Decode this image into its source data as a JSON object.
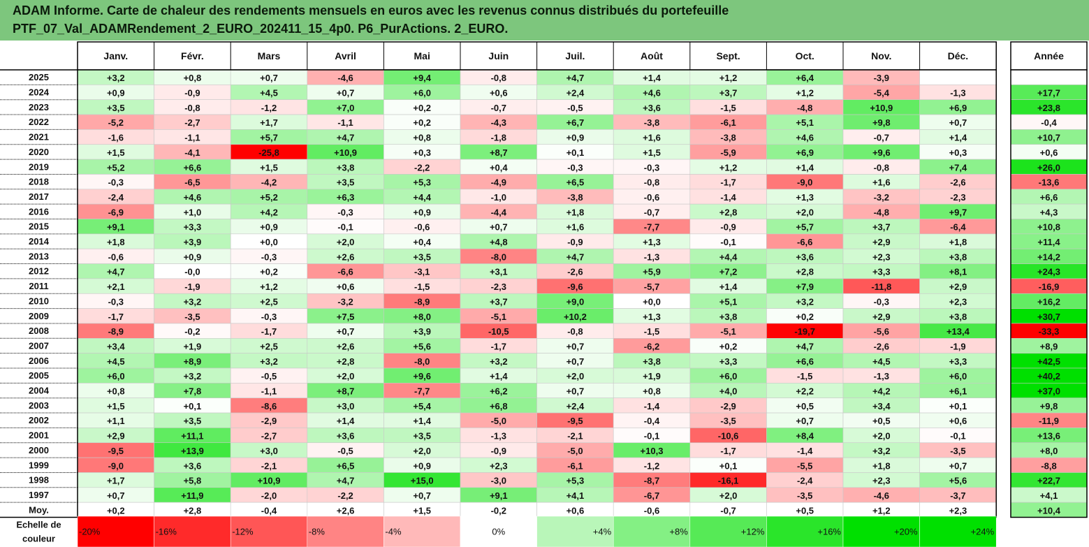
{
  "title_line1": "ADAM Informe. Carte de chaleur des rendements mensuels en euros avec les revenus connus distribués du portefeuille",
  "title_line2": "PTF_07_Val_ADAMRendement_2_EURO_202411_15_4p0. P6_PurActions. 2_EURO.",
  "colors": {
    "banner": "#7dc67d",
    "negative_max": "#ff0000",
    "neutral": "#ffffff",
    "positive_max": "#00e000"
  },
  "chart_data": {
    "type": "heatmap",
    "columns": [
      "Janv.",
      "Févr.",
      "Mars",
      "Avril",
      "Mai",
      "Juin",
      "Juil.",
      "Août",
      "Sept.",
      "Oct.",
      "Nov.",
      "Déc."
    ],
    "year_column": "Année",
    "rows": [
      {
        "label": "2025",
        "months": [
          "+3,2",
          "+0,8",
          "+0,7",
          "-4,6",
          "+9,4",
          "-0,8",
          "+4,7",
          "+1,4",
          "+1,2",
          "+6,4",
          "-3,9",
          ""
        ],
        "year": ""
      },
      {
        "label": "2024",
        "months": [
          "+0,9",
          "-0,9",
          "+4,5",
          "+0,7",
          "+6,0",
          "+0,6",
          "+2,4",
          "+4,6",
          "+3,7",
          "+1,2",
          "-5,4",
          "-1,3"
        ],
        "year": "+17,7"
      },
      {
        "label": "2023",
        "months": [
          "+3,5",
          "-0,8",
          "-1,2",
          "+7,0",
          "+0,2",
          "-0,7",
          "-0,5",
          "+3,6",
          "-1,5",
          "-4,8",
          "+10,9",
          "+6,9"
        ],
        "year": "+23,8"
      },
      {
        "label": "2022",
        "months": [
          "-5,2",
          "-2,7",
          "+1,7",
          "-1,1",
          "+0,2",
          "-4,3",
          "+6,7",
          "-3,8",
          "-6,1",
          "+5,1",
          "+9,8",
          "+0,7"
        ],
        "year": "-0,4"
      },
      {
        "label": "2021",
        "months": [
          "-1,6",
          "-1,1",
          "+5,7",
          "+4,7",
          "+0,8",
          "-1,8",
          "+0,9",
          "+1,6",
          "-3,8",
          "+4,6",
          "-0,7",
          "+1,4"
        ],
        "year": "+10,7"
      },
      {
        "label": "2020",
        "months": [
          "+1,5",
          "-4,1",
          "-25,8",
          "+10,9",
          "+0,3",
          "+8,7",
          "+0,1",
          "+1,5",
          "-5,9",
          "+6,9",
          "+9,6",
          "+0,3"
        ],
        "year": "+0,6"
      },
      {
        "label": "2019",
        "months": [
          "+5,2",
          "+6,6",
          "+1,5",
          "+3,8",
          "-2,2",
          "+0,4",
          "-0,3",
          "-0,3",
          "+1,2",
          "+1,4",
          "-0,8",
          "+7,4"
        ],
        "year": "+26,0"
      },
      {
        "label": "2018",
        "months": [
          "-0,3",
          "-6,5",
          "-4,2",
          "+3,5",
          "+5,3",
          "-4,9",
          "+6,5",
          "-0,8",
          "-1,7",
          "-9,0",
          "+1,6",
          "-2,6"
        ],
        "year": "-13,6"
      },
      {
        "label": "2017",
        "months": [
          "-2,4",
          "+4,6",
          "+5,2",
          "+6,3",
          "+4,4",
          "-1,0",
          "-3,8",
          "-0,6",
          "-1,4",
          "+1,3",
          "-3,2",
          "-2,3"
        ],
        "year": "+6,6"
      },
      {
        "label": "2016",
        "months": [
          "-6,9",
          "+1,0",
          "+4,2",
          "-0,3",
          "+0,9",
          "-4,4",
          "+1,8",
          "-0,7",
          "+2,8",
          "+2,0",
          "-4,8",
          "+9,7"
        ],
        "year": "+4,3"
      },
      {
        "label": "2015",
        "months": [
          "+9,1",
          "+3,3",
          "+0,9",
          "-0,1",
          "-0,6",
          "+0,7",
          "+1,6",
          "-7,7",
          "-0,9",
          "+5,7",
          "+3,7",
          "-6,4"
        ],
        "year": "+10,8"
      },
      {
        "label": "2014",
        "months": [
          "+1,8",
          "+3,9",
          "+0,0",
          "+2,0",
          "+0,4",
          "+4,8",
          "-0,9",
          "+1,3",
          "-0,1",
          "-6,6",
          "+2,9",
          "+1,8"
        ],
        "year": "+11,4"
      },
      {
        "label": "2013",
        "months": [
          "-0,6",
          "+0,9",
          "-0,3",
          "+2,6",
          "+3,5",
          "-8,0",
          "+4,7",
          "-1,3",
          "+4,4",
          "+3,6",
          "+2,3",
          "+3,8"
        ],
        "year": "+14,2"
      },
      {
        "label": "2012",
        "months": [
          "+4,7",
          "-0,0",
          "+0,2",
          "-6,6",
          "-3,1",
          "+3,1",
          "-2,6",
          "+5,9",
          "+7,2",
          "+2,8",
          "+3,3",
          "+8,1"
        ],
        "year": "+24,3"
      },
      {
        "label": "2011",
        "months": [
          "+2,1",
          "-1,9",
          "+1,2",
          "+0,6",
          "-1,5",
          "-2,3",
          "-9,6",
          "-5,7",
          "+1,4",
          "+7,9",
          "-11,8",
          "+2,9"
        ],
        "year": "-16,9"
      },
      {
        "label": "2010",
        "months": [
          "-0,3",
          "+3,2",
          "+2,5",
          "-3,2",
          "-8,9",
          "+3,7",
          "+9,0",
          "+0,0",
          "+5,1",
          "+3,2",
          "-0,3",
          "+2,3"
        ],
        "year": "+16,2"
      },
      {
        "label": "2009",
        "months": [
          "-1,7",
          "-3,5",
          "-0,3",
          "+7,5",
          "+8,0",
          "-5,1",
          "+10,2",
          "+1,3",
          "+3,8",
          "+0,2",
          "+2,9",
          "+3,8"
        ],
        "year": "+30,7"
      },
      {
        "label": "2008",
        "months": [
          "-8,9",
          "-0,2",
          "-1,7",
          "+0,7",
          "+3,9",
          "-10,5",
          "-0,8",
          "-1,5",
          "-5,1",
          "-19,7",
          "-5,6",
          "+13,4"
        ],
        "year": "-33,3"
      },
      {
        "label": "2007",
        "months": [
          "+3,4",
          "+1,9",
          "+2,5",
          "+2,6",
          "+5,6",
          "-1,7",
          "+0,7",
          "-6,2",
          "+0,2",
          "+4,7",
          "-2,6",
          "-1,9"
        ],
        "year": "+8,9"
      },
      {
        "label": "2006",
        "months": [
          "+4,5",
          "+8,9",
          "+3,2",
          "+2,8",
          "-8,0",
          "+3,2",
          "+0,7",
          "+3,8",
          "+3,3",
          "+6,6",
          "+4,5",
          "+3,3"
        ],
        "year": "+42,5"
      },
      {
        "label": "2005",
        "months": [
          "+6,0",
          "+3,2",
          "-0,5",
          "+2,0",
          "+9,6",
          "+1,4",
          "+2,0",
          "+1,9",
          "+6,0",
          "-1,5",
          "-1,3",
          "+6,0"
        ],
        "year": "+40,2"
      },
      {
        "label": "2004",
        "months": [
          "+0,8",
          "+7,8",
          "-1,1",
          "+8,7",
          "-7,7",
          "+6,2",
          "+0,7",
          "+0,8",
          "+4,0",
          "+2,2",
          "+4,2",
          "+6,1"
        ],
        "year": "+37,0"
      },
      {
        "label": "2003",
        "months": [
          "+1,5",
          "+0,1",
          "-8,6",
          "+3,0",
          "+5,4",
          "+6,8",
          "+2,4",
          "-1,4",
          "-2,9",
          "+0,5",
          "+3,4",
          "+0,1"
        ],
        "year": "+9,8"
      },
      {
        "label": "2002",
        "months": [
          "+1,1",
          "+3,5",
          "-2,9",
          "+1,4",
          "+1,4",
          "-5,0",
          "-9,5",
          "-0,4",
          "-3,5",
          "+0,7",
          "+0,5",
          "+0,6"
        ],
        "year": "-11,9"
      },
      {
        "label": "2001",
        "months": [
          "+2,9",
          "+11,1",
          "-2,7",
          "+3,6",
          "+3,5",
          "-1,3",
          "-2,1",
          "-0,1",
          "-10,6",
          "+8,4",
          "+2,0",
          "-0,1"
        ],
        "year": "+13,6"
      },
      {
        "label": "2000",
        "months": [
          "-9,5",
          "+13,9",
          "+3,0",
          "-0,5",
          "+2,0",
          "-0,9",
          "-5,0",
          "+10,3",
          "-1,7",
          "-1,4",
          "+3,2",
          "-3,5"
        ],
        "year": "+8,0"
      },
      {
        "label": "1999",
        "months": [
          "-9,0",
          "+3,6",
          "-2,1",
          "+6,5",
          "+0,9",
          "+2,3",
          "-6,1",
          "-1,2",
          "+0,1",
          "-5,5",
          "+1,8",
          "+0,7"
        ],
        "year": "-8,8"
      },
      {
        "label": "1998",
        "months": [
          "+1,7",
          "+5,8",
          "+10,9",
          "+4,7",
          "+15,0",
          "-3,0",
          "+5,3",
          "-8,7",
          "-16,1",
          "-2,4",
          "+2,3",
          "+5,6"
        ],
        "year": "+22,7"
      },
      {
        "label": "1997",
        "months": [
          "+0,7",
          "+11,9",
          "-2,0",
          "-2,2",
          "+0,7",
          "+9,1",
          "+4,1",
          "-6,7",
          "+2,0",
          "-3,5",
          "-4,6",
          "-3,7"
        ],
        "year": "+4,1"
      },
      {
        "label": "Moy.",
        "months": [
          "+0,2",
          "+2,8",
          "-0,4",
          "+2,6",
          "+1,5",
          "-0,2",
          "+0,6",
          "-0,6",
          "-0,7",
          "+0,5",
          "+1,2",
          "+2,3"
        ],
        "year": "+10,4"
      }
    ],
    "legend_title": "Echelle de couleur",
    "legend": [
      {
        "label": "-20%",
        "value": -20
      },
      {
        "label": "-16%",
        "value": -16
      },
      {
        "label": "-12%",
        "value": -12
      },
      {
        "label": "-8%",
        "value": -8
      },
      {
        "label": "-4%",
        "value": -4
      },
      {
        "label": "0%",
        "value": 0
      },
      {
        "label": "+4%",
        "value": 4
      },
      {
        "label": "+8%",
        "value": 8
      },
      {
        "label": "+12%",
        "value": 12
      },
      {
        "label": "+16%",
        "value": 16
      },
      {
        "label": "+20%",
        "value": 20
      },
      {
        "label": "+24%",
        "value": 24
      }
    ]
  }
}
